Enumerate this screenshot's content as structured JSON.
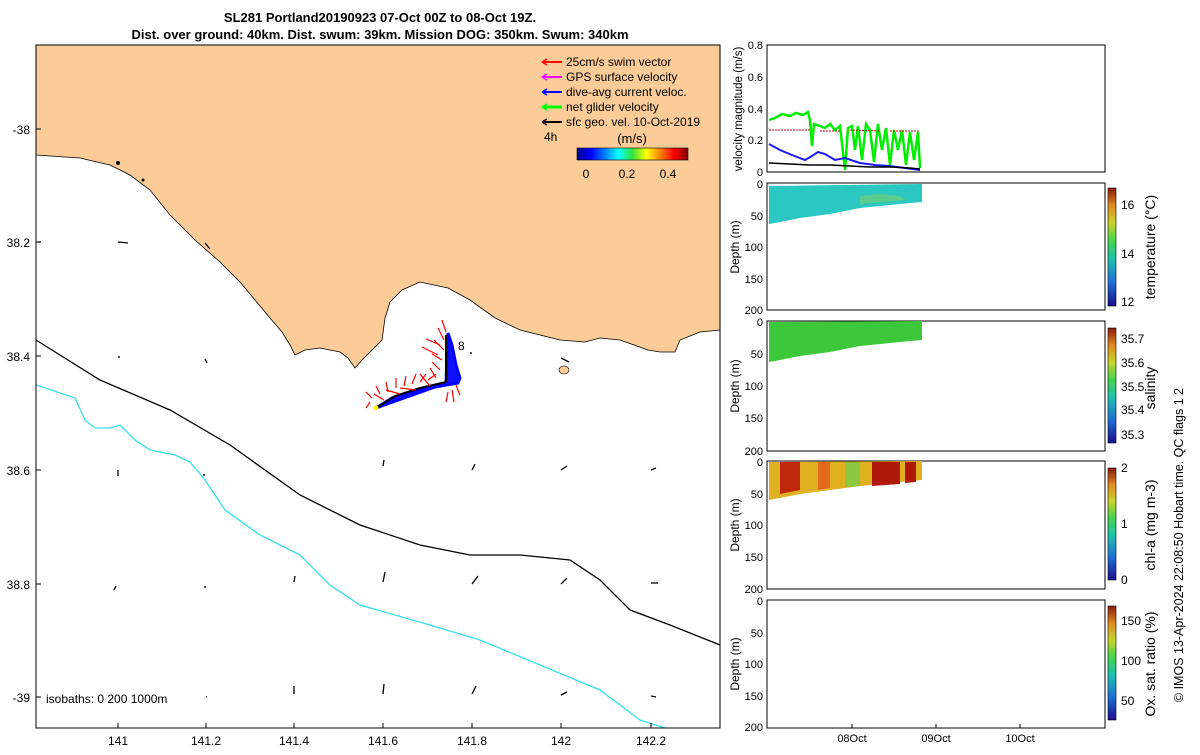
{
  "title": {
    "line1": "SL281 Portland20190923 07-Oct 00Z to 08-Oct 19Z.",
    "line2": "Dist. over ground: 40km. Dist. swum: 39km. Mission DOG: 350km. Swum: 340km"
  },
  "map": {
    "lat_ticks": [
      "-38",
      "38.2",
      "38.4",
      "38.6",
      "38.8",
      "-39"
    ],
    "lon_ticks": [
      "141",
      "141.2",
      "141.4",
      "141.6",
      "141.8",
      "142",
      "142.2"
    ],
    "legend": {
      "items": [
        {
          "label": "25cm/s swim vector",
          "color": "#ff0000"
        },
        {
          "label": "GPS surface velocity",
          "color": "#ff00ff"
        },
        {
          "label": "dive-avg current veloc.",
          "color": "#0000ff"
        },
        {
          "label": "net glider velocity",
          "color": "#00ff00"
        },
        {
          "label": "sfc geo. vel. 10-Oct-2019",
          "color": "#000000"
        }
      ],
      "age_label": "4h",
      "colorbar_title": "(m/s)",
      "colorbar_ticks": [
        "0",
        "0.2",
        "0.4"
      ]
    },
    "isobath_label": "isobaths: 0   200  1000m",
    "track_label": "8",
    "colors": {
      "land": "#fbcb98",
      "isobath_200": "#000000",
      "isobath_1000": "#33e0e8",
      "ocean": "#ffffff"
    }
  },
  "panels": {
    "velocity": {
      "ylabel": "velocity magnitude (m/s)",
      "yticks": [
        "0",
        "0.2",
        "0.4",
        "0.6",
        "0.8"
      ]
    },
    "depth_ylabel": "Depth (m)",
    "depth_ticks": [
      "0",
      "50",
      "100",
      "150",
      "200"
    ],
    "temperature": {
      "label": "temperature (°C)",
      "cb_ticks": [
        "12",
        "14",
        "16"
      ]
    },
    "salinity": {
      "label": "salinity",
      "cb_ticks": [
        "35.3",
        "35.4",
        "35.5",
        "35.6",
        "35.7"
      ]
    },
    "chla": {
      "label": "chl-a (mg m-3)",
      "cb_ticks": [
        "0",
        "1",
        "2"
      ]
    },
    "oxygen": {
      "label": "Ox. sat. ratio (%)",
      "cb_ticks": [
        "50",
        "100",
        "150"
      ]
    },
    "time_ticks": [
      "08Oct",
      "09Oct",
      "10Oct"
    ]
  },
  "footer": "© IMOS 13-Apr-2024 22:08:50 Hobart time. QC flags 1  2"
}
